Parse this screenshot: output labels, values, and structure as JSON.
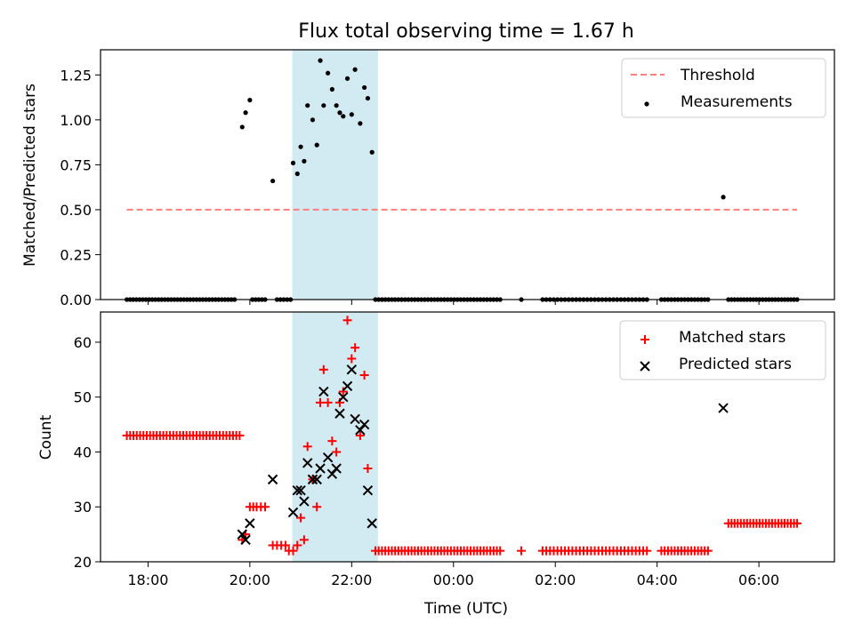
{
  "figure": {
    "title": "Flux total observing time = 1.67 h"
  },
  "chart_data": [
    {
      "type": "scatter",
      "panel": "top",
      "xlabel": "",
      "ylabel": "Matched/Predicted stars",
      "x_is_time": true,
      "xlim": [
        "17:04",
        "07:29"
      ],
      "ylim": [
        0,
        1.39
      ],
      "yticks": [
        "0.00",
        "0.25",
        "0.50",
        "0.75",
        "1.00",
        "1.25"
      ],
      "ytick_values": [
        0,
        0.25,
        0.5,
        0.75,
        1.0,
        1.25
      ],
      "shaded_span": [
        "20:50",
        "22:31"
      ],
      "shaded_color": "#add8e6",
      "legend_position": "upper right",
      "legend": [
        {
          "label": "Threshold",
          "marker": "dashed-line",
          "color": "#ff7f7f"
        },
        {
          "label": "Measurements",
          "marker": "dot",
          "color": "#000000"
        }
      ],
      "threshold": {
        "name": "Threshold",
        "y": 0.5,
        "x": [
          "17:35",
          "06:45"
        ],
        "color": "#ff7f7f"
      },
      "series": [
        {
          "name": "Measurements",
          "color": "#000000",
          "points": [
            [
              "19:51",
              0.96
            ],
            [
              "19:55",
              1.04
            ],
            [
              "20:00",
              1.11
            ],
            [
              "20:27",
              0.66
            ],
            [
              "20:51",
              0.76
            ],
            [
              "20:56",
              0.7
            ],
            [
              "21:00",
              0.85
            ],
            [
              "21:04",
              0.77
            ],
            [
              "21:08",
              1.08
            ],
            [
              "21:14",
              1.0
            ],
            [
              "21:19",
              0.86
            ],
            [
              "21:23",
              1.33
            ],
            [
              "21:27",
              1.08
            ],
            [
              "21:32",
              1.26
            ],
            [
              "21:37",
              1.17
            ],
            [
              "21:42",
              1.08
            ],
            [
              "21:46",
              1.04
            ],
            [
              "21:50",
              1.02
            ],
            [
              "21:55",
              1.23
            ],
            [
              "22:00",
              1.03
            ],
            [
              "22:04",
              1.28
            ],
            [
              "22:10",
              0.98
            ],
            [
              "22:15",
              1.18
            ],
            [
              "22:19",
              1.12
            ],
            [
              "22:24",
              0.82
            ],
            [
              "05:18",
              0.57
            ]
          ],
          "zero_runs": [
            [
              "17:35",
              "19:42",
              35
            ],
            [
              "20:03",
              "20:18",
              5
            ],
            [
              "20:32",
              "20:48",
              5
            ],
            [
              "22:28",
              "00:55",
              39
            ],
            [
              "01:20",
              "01:20",
              1
            ],
            [
              "01:45",
              "03:48",
              29
            ],
            [
              "04:05",
              "05:00",
              15
            ],
            [
              "05:24",
              "06:45",
              23
            ]
          ]
        }
      ]
    },
    {
      "type": "scatter",
      "panel": "bottom",
      "xlabel": "Time (UTC)",
      "ylabel": "Count",
      "x_is_time": true,
      "xlim": [
        "17:04",
        "07:29"
      ],
      "ylim": [
        20,
        65.5
      ],
      "yticks": [
        "20",
        "30",
        "40",
        "50",
        "60"
      ],
      "ytick_values": [
        20,
        30,
        40,
        50,
        60
      ],
      "xticks": [
        "18:00",
        "20:00",
        "22:00",
        "00:00",
        "02:00",
        "04:00",
        "06:00"
      ],
      "shaded_span": [
        "20:50",
        "22:31"
      ],
      "shaded_color": "#add8e6",
      "legend_position": "upper right",
      "legend": [
        {
          "label": "Matched stars",
          "marker": "plus",
          "color": "#ff0000"
        },
        {
          "label": "Predicted stars",
          "marker": "x",
          "color": "#000000"
        }
      ],
      "series": [
        {
          "name": "Matched stars",
          "color": "#ff0000",
          "points": [
            [
              "19:51",
              24
            ],
            [
              "19:55",
              25
            ],
            [
              "20:00",
              30
            ],
            [
              "20:04",
              30
            ],
            [
              "20:08",
              30
            ],
            [
              "20:13",
              30
            ],
            [
              "20:18",
              30
            ],
            [
              "20:27",
              23
            ],
            [
              "20:32",
              23
            ],
            [
              "20:37",
              23
            ],
            [
              "20:42",
              23
            ],
            [
              "20:46",
              22
            ],
            [
              "20:51",
              22
            ],
            [
              "20:56",
              23
            ],
            [
              "21:00",
              28
            ],
            [
              "21:04",
              24
            ],
            [
              "21:08",
              41
            ],
            [
              "21:14",
              35
            ],
            [
              "21:19",
              30
            ],
            [
              "21:23",
              49
            ],
            [
              "21:27",
              55
            ],
            [
              "21:32",
              49
            ],
            [
              "21:37",
              42
            ],
            [
              "21:42",
              40
            ],
            [
              "21:46",
              49
            ],
            [
              "21:50",
              51
            ],
            [
              "21:55",
              64
            ],
            [
              "22:00",
              57
            ],
            [
              "22:04",
              59
            ],
            [
              "22:10",
              43
            ],
            [
              "22:15",
              54
            ],
            [
              "22:19",
              37
            ]
          ],
          "runs": [
            [
              "17:35",
              "19:48",
              43,
              35
            ],
            [
              "22:28",
              "00:55",
              22,
              39
            ],
            [
              "01:20",
              "01:20",
              22,
              1
            ],
            [
              "01:45",
              "03:48",
              22,
              29
            ],
            [
              "04:05",
              "05:00",
              22,
              15
            ],
            [
              "05:24",
              "06:45",
              27,
              23
            ]
          ]
        },
        {
          "name": "Predicted stars",
          "color": "#000000",
          "points": [
            [
              "19:51",
              25
            ],
            [
              "19:55",
              24
            ],
            [
              "20:00",
              27
            ],
            [
              "20:27",
              35
            ],
            [
              "20:51",
              29
            ],
            [
              "20:56",
              33
            ],
            [
              "21:00",
              33
            ],
            [
              "21:04",
              31
            ],
            [
              "21:08",
              38
            ],
            [
              "21:14",
              35
            ],
            [
              "21:19",
              35
            ],
            [
              "21:23",
              37
            ],
            [
              "21:27",
              51
            ],
            [
              "21:32",
              39
            ],
            [
              "21:37",
              36
            ],
            [
              "21:42",
              37
            ],
            [
              "21:46",
              47
            ],
            [
              "21:50",
              50
            ],
            [
              "21:55",
              52
            ],
            [
              "22:00",
              55
            ],
            [
              "22:04",
              46
            ],
            [
              "22:10",
              44
            ],
            [
              "22:15",
              45
            ],
            [
              "22:19",
              33
            ],
            [
              "22:24",
              27
            ],
            [
              "05:18",
              48
            ]
          ]
        }
      ]
    }
  ]
}
